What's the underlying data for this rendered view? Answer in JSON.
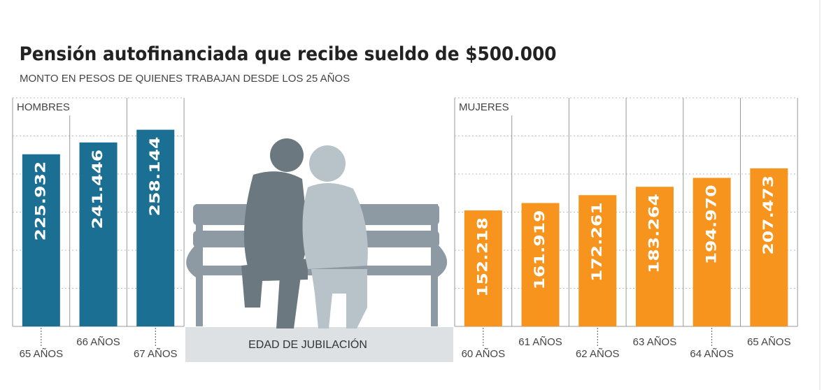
{
  "title": "Pensión autofinanciada que recibe sueldo de $500.000",
  "subtitle": "MONTO EN PESOS DE QUIENES TRABAJAN DESDE LOS 25 AÑOS",
  "center_label": "EDAD DE JUBILACIÓN",
  "chart_data": [
    {
      "type": "bar",
      "label": "HOMBRES",
      "categories": [
        "65 AÑOS",
        "66 AÑOS",
        "67 AÑOS"
      ],
      "values": [
        225932,
        241446,
        258144
      ],
      "value_labels": [
        "225.932",
        "241.446",
        "258.144"
      ],
      "color": "#1b6f93",
      "ylim": [
        0,
        300000
      ],
      "yticks": [
        0,
        50000,
        100000,
        150000,
        200000,
        250000,
        300000
      ],
      "grid": true
    },
    {
      "type": "bar",
      "label": "MUJERES",
      "categories": [
        "60 AÑOS",
        "61 AÑOS",
        "62 AÑOS",
        "63 AÑOS",
        "64 AÑOS",
        "65 AÑOS"
      ],
      "values": [
        152218,
        161919,
        172261,
        183264,
        194970,
        207473
      ],
      "value_labels": [
        "152.218",
        "161.919",
        "172.261",
        "183.264",
        "194.970",
        "207.473"
      ],
      "color": "#f7941d",
      "ylim": [
        0,
        300000
      ],
      "yticks": [
        0,
        50000,
        100000,
        150000,
        200000,
        250000,
        300000
      ],
      "grid": true
    }
  ]
}
